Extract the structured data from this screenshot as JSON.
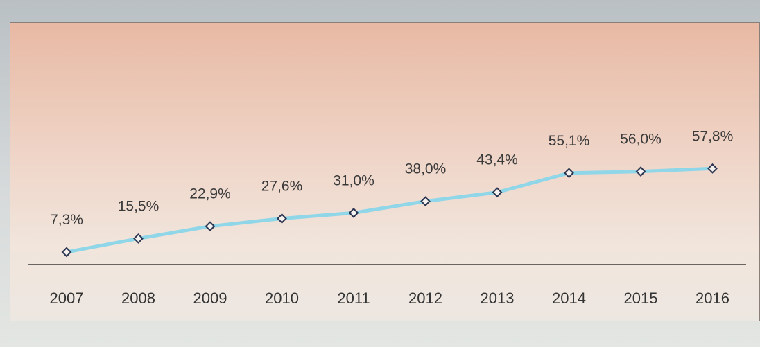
{
  "chart_data": {
    "type": "line",
    "categories": [
      "2007",
      "2008",
      "2009",
      "2010",
      "2011",
      "2012",
      "2013",
      "2014",
      "2015",
      "2016"
    ],
    "values": [
      7.3,
      15.5,
      22.9,
      27.6,
      31.0,
      38.0,
      43.4,
      55.1,
      56.0,
      57.8
    ],
    "data_labels": [
      "7,3%",
      "15,5%",
      "22,9%",
      "27,6%",
      "31,0%",
      "38,0%",
      "43,4%",
      "55,1%",
      "56,0%",
      "57,8%"
    ],
    "title": "",
    "xlabel": "",
    "ylabel": "",
    "ylim": [
      0,
      70
    ],
    "grid": false,
    "legend": "none",
    "colors": {
      "line": "#8fd6e8",
      "marker_stroke": "#2b3550",
      "marker_fill": "#f4f1ee",
      "axis": "#3b3b3b"
    }
  }
}
